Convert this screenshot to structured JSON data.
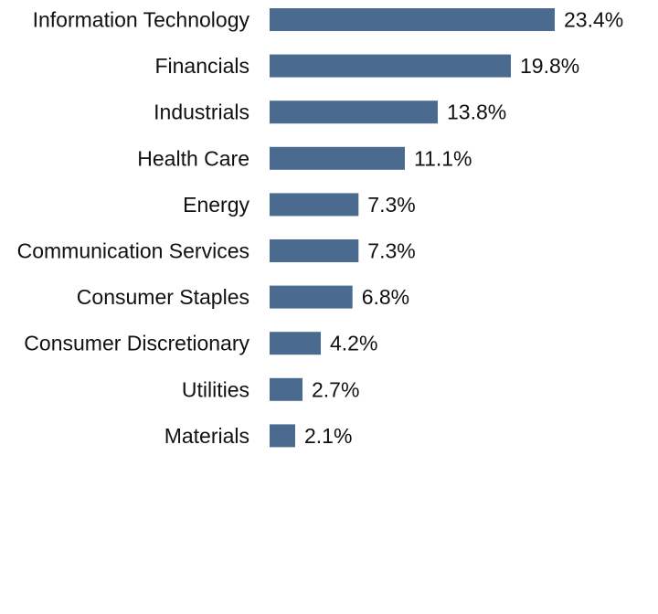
{
  "chart_data": {
    "type": "bar",
    "orientation": "horizontal",
    "categories": [
      "Information Technology",
      "Financials",
      "Industrials",
      "Health Care",
      "Energy",
      "Communication Services",
      "Consumer Staples",
      "Consumer Discretionary",
      "Utilities",
      "Materials"
    ],
    "values": [
      23.4,
      19.8,
      13.8,
      11.1,
      7.3,
      7.3,
      6.8,
      4.2,
      2.7,
      2.1
    ],
    "value_labels": [
      "23.4%",
      "19.8%",
      "13.8%",
      "11.1%",
      "7.3%",
      "7.3%",
      "6.8%",
      "4.2%",
      "2.7%",
      "2.1%"
    ],
    "unit": "%",
    "bar_color": "#4a6b8f",
    "xlim": [
      0,
      23.4
    ],
    "grid": false,
    "legend": "none"
  }
}
